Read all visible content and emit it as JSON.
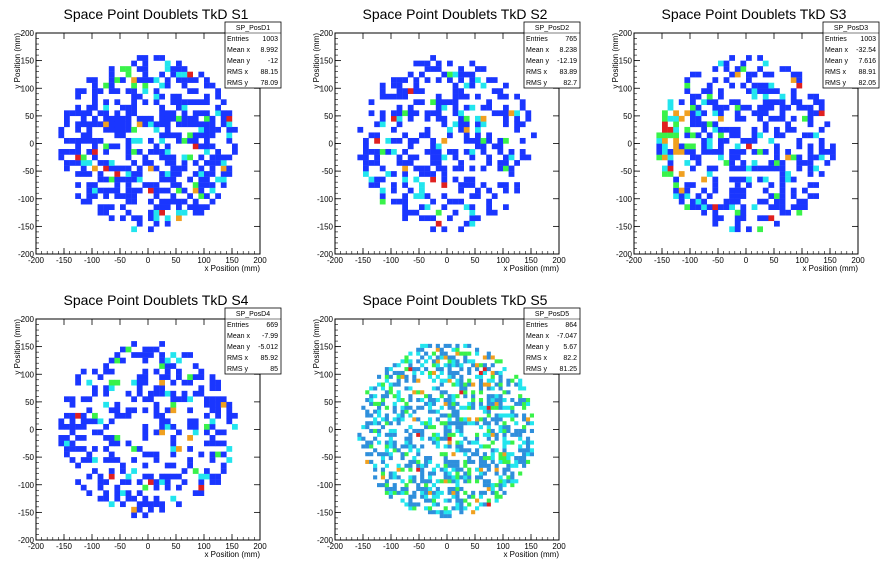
{
  "chart_data": [
    {
      "type": "heatmap",
      "title": "Space Point Doublets TkD S1",
      "xlabel": "x Position (mm)",
      "ylabel": "y Position (mm)",
      "xlim": [
        -200,
        200
      ],
      "ylim": [
        -200,
        200
      ],
      "xticks": [
        "-200",
        "-150",
        "-100",
        "-50",
        "0",
        "50",
        "100",
        "150",
        "200"
      ],
      "yticks": [
        "-200",
        "-150",
        "-100",
        "-50",
        "0",
        "50",
        "100",
        "150",
        "200"
      ],
      "bin_width": 10,
      "fill_radius": 160,
      "density": 0.55,
      "seed": 11,
      "stats": {
        "name": "SP_PosD1",
        "rows": [
          {
            "label": "Entries",
            "value": "1003"
          },
          {
            "label": "Mean x",
            "value": "8.992"
          },
          {
            "label": "Mean y",
            "value": "-12"
          },
          {
            "label": "RMS x",
            "value": "88.15"
          },
          {
            "label": "RMS y",
            "value": "78.09"
          }
        ]
      }
    },
    {
      "type": "heatmap",
      "title": "Space Point Doublets TkD S2",
      "xlabel": "x Position (mm)",
      "ylabel": "y Position (mm)",
      "xlim": [
        -200,
        200
      ],
      "ylim": [
        -200,
        200
      ],
      "xticks": [
        "-200",
        "-150",
        "-100",
        "-50",
        "0",
        "50",
        "100",
        "150",
        "200"
      ],
      "yticks": [
        "-200",
        "-150",
        "-100",
        "-50",
        "0",
        "50",
        "100",
        "150",
        "200"
      ],
      "bin_width": 10,
      "fill_radius": 160,
      "density": 0.42,
      "seed": 23,
      "stats": {
        "name": "SP_PosD2",
        "rows": [
          {
            "label": "Entries",
            "value": "765"
          },
          {
            "label": "Mean x",
            "value": "8.238"
          },
          {
            "label": "Mean y",
            "value": "-12.19"
          },
          {
            "label": "RMS x",
            "value": "83.89"
          },
          {
            "label": "RMS y",
            "value": "82.7"
          }
        ]
      }
    },
    {
      "type": "heatmap",
      "title": "Space Point Doublets TkD S3",
      "xlabel": "x Position (mm)",
      "ylabel": "y Position (mm)",
      "xlim": [
        -200,
        200
      ],
      "ylim": [
        -200,
        200
      ],
      "xticks": [
        "-200",
        "-150",
        "-100",
        "-50",
        "0",
        "50",
        "100",
        "150",
        "200"
      ],
      "yticks": [
        "-200",
        "-150",
        "-100",
        "-50",
        "0",
        "50",
        "100",
        "150",
        "200"
      ],
      "bin_width": 10,
      "fill_radius": 160,
      "density": 0.48,
      "seed": 37,
      "stats": {
        "name": "SP_PosD3",
        "rows": [
          {
            "label": "Entries",
            "value": "1003"
          },
          {
            "label": "Mean x",
            "value": "-32.54"
          },
          {
            "label": "Mean y",
            "value": "7.616"
          },
          {
            "label": "RMS x",
            "value": "88.91"
          },
          {
            "label": "RMS y",
            "value": "82.05"
          }
        ]
      }
    },
    {
      "type": "heatmap",
      "title": "Space Point Doublets TkD S4",
      "xlabel": "x Position (mm)",
      "ylabel": "y Position (mm)",
      "xlim": [
        -200,
        200
      ],
      "ylim": [
        -200,
        200
      ],
      "xticks": [
        "-200",
        "-150",
        "-100",
        "-50",
        "0",
        "50",
        "100",
        "150",
        "200"
      ],
      "yticks": [
        "-200",
        "-150",
        "-100",
        "-50",
        "0",
        "50",
        "100",
        "150",
        "200"
      ],
      "bin_width": 10,
      "fill_radius": 160,
      "density": 0.38,
      "seed": 53,
      "stats": {
        "name": "SP_PosD4",
        "rows": [
          {
            "label": "Entries",
            "value": "669"
          },
          {
            "label": "Mean x",
            "value": "-7.99"
          },
          {
            "label": "Mean y",
            "value": "-5.012"
          },
          {
            "label": "RMS x",
            "value": "85.92"
          },
          {
            "label": "RMS y",
            "value": "85"
          }
        ]
      }
    },
    {
      "type": "heatmap",
      "title": "Space Point Doublets TkD S5",
      "xlabel": "x Position (mm)",
      "ylabel": "y Position (mm)",
      "xlim": [
        -200,
        200
      ],
      "ylim": [
        -200,
        200
      ],
      "xticks": [
        "-200",
        "-150",
        "-100",
        "-50",
        "0",
        "50",
        "100",
        "150",
        "200"
      ],
      "yticks": [
        "-200",
        "-150",
        "-100",
        "-50",
        "0",
        "50",
        "100",
        "150",
        "200"
      ],
      "bin_width": 7,
      "fill_radius": 160,
      "density": 0.5,
      "seed": 71,
      "stats": {
        "name": "SP_PosD5",
        "rows": [
          {
            "label": "Entries",
            "value": "864"
          },
          {
            "label": "Mean x",
            "value": "-7.047"
          },
          {
            "label": "Mean y",
            "value": "5.67"
          },
          {
            "label": "RMS x",
            "value": "82.2"
          },
          {
            "label": "RMS y",
            "value": "81.25"
          }
        ]
      }
    }
  ],
  "palette": {
    "low": "#1a36ff",
    "mid1": "#2f8fdc",
    "mid2": "#22e5ee",
    "mid3": "#39f24a",
    "high1": "#f0a020",
    "high2": "#e02020"
  }
}
